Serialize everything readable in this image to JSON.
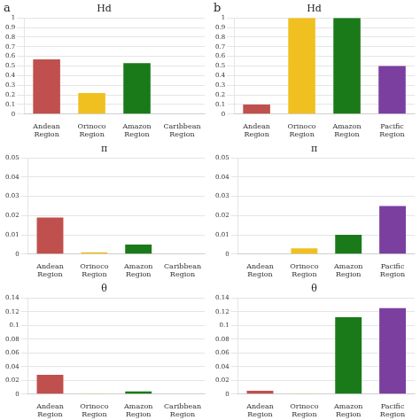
{
  "chart_data": [
    {
      "type": "bar",
      "title": "Hd",
      "annotations": [
        "a"
      ],
      "categories": [
        "Andean\nRegion",
        "Orinoco\nRegion",
        "Amazon\nRegion",
        "Caribbean\nRegion"
      ],
      "values": [
        0.57,
        0.22,
        0.53,
        0.0
      ],
      "colors": [
        "#c0504d",
        "#f0c020",
        "#1a7a1a",
        "#555555"
      ],
      "ylim": [
        0,
        1
      ],
      "yticks": [
        0,
        0.1,
        0.2,
        0.3,
        0.4,
        0.5,
        0.6,
        0.7,
        0.8,
        0.9,
        1
      ],
      "grid": true
    },
    {
      "type": "bar",
      "title": "Hd",
      "annotations": [
        "b"
      ],
      "categories": [
        "Andean\nRegion",
        "Orinoco\nRegion",
        "Amazon\nRegion",
        "Pacific\nRegion"
      ],
      "values": [
        0.1,
        1.0,
        1.0,
        0.5
      ],
      "colors": [
        "#c0504d",
        "#f0c020",
        "#1a7a1a",
        "#7b3fa0"
      ],
      "ylim": [
        0,
        1
      ],
      "yticks": [
        0,
        0.1,
        0.2,
        0.3,
        0.4,
        0.5,
        0.6,
        0.7,
        0.8,
        0.9,
        1
      ],
      "grid": true
    },
    {
      "type": "bar",
      "title": "π",
      "categories": [
        "Andean\nRegion",
        "Orinoco\nRegion",
        "Amazon\nRegion",
        "Caribbean\nRegion"
      ],
      "values": [
        0.019,
        0.001,
        0.005,
        0.0
      ],
      "colors": [
        "#c0504d",
        "#f0c020",
        "#1a7a1a",
        "#555555"
      ],
      "ylim": [
        0,
        0.05
      ],
      "yticks": [
        0,
        0.01,
        0.02,
        0.03,
        0.04,
        0.05
      ],
      "grid": true
    },
    {
      "type": "bar",
      "title": "π",
      "categories": [
        "Andean\nRegion",
        "Orinoco\nRegion",
        "Amazon\nRegion",
        "Pacific\nRegion"
      ],
      "values": [
        0.0,
        0.003,
        0.01,
        0.025
      ],
      "colors": [
        "#c0504d",
        "#f0c020",
        "#1a7a1a",
        "#7b3fa0"
      ],
      "ylim": [
        0,
        0.05
      ],
      "yticks": [
        0,
        0.01,
        0.02,
        0.03,
        0.04,
        0.05
      ],
      "grid": true
    },
    {
      "type": "bar",
      "title": "θ",
      "categories": [
        "Andean\nRegion",
        "Orinoco\nRegion",
        "Amazon\nRegion",
        "Caribbean\nRegion"
      ],
      "values": [
        0.028,
        0.001,
        0.004,
        0.0
      ],
      "colors": [
        "#c0504d",
        "#f0c020",
        "#1a7a1a",
        "#555555"
      ],
      "ylim": [
        0,
        0.14
      ],
      "yticks": [
        0,
        0.02,
        0.04,
        0.06,
        0.08,
        0.1,
        0.12,
        0.14
      ],
      "grid": true
    },
    {
      "type": "bar",
      "title": "θ",
      "categories": [
        "Andean\nRegion",
        "Orinoco\nRegion",
        "Amazon\nRegion",
        "Pacific\nRegion"
      ],
      "values": [
        0.005,
        0.001,
        0.112,
        0.125
      ],
      "colors": [
        "#c0504d",
        "#f0c020",
        "#1a7a1a",
        "#7b3fa0"
      ],
      "ylim": [
        0,
        0.14
      ],
      "yticks": [
        0,
        0.02,
        0.04,
        0.06,
        0.08,
        0.1,
        0.12,
        0.14
      ],
      "grid": true
    }
  ]
}
